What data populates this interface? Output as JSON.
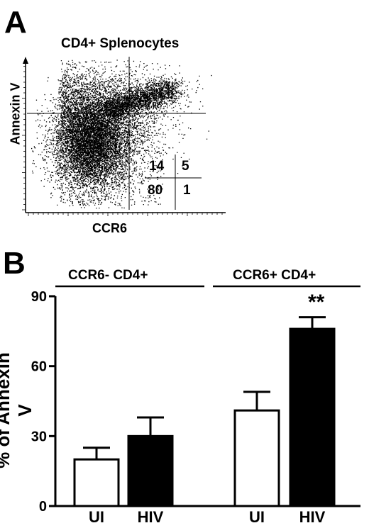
{
  "panelA": {
    "letter": "A",
    "title": "CD4+ Splenocytes",
    "xlabel": "CCR6",
    "ylabel": "Annexin V",
    "quadrants": {
      "upper_left": "14",
      "upper_right": "5",
      "lower_left": "80",
      "lower_right": "1"
    }
  },
  "panelB": {
    "letter": "B",
    "groups": [
      "CCR6- CD4+",
      "CCR6+ CD4+"
    ],
    "significance": "**"
  },
  "chart_data": [
    {
      "type": "scatter",
      "title": "CD4+ Splenocytes",
      "xlabel": "CCR6",
      "ylabel": "Annexin V",
      "quadrant_percentages": {
        "upper_left": 14,
        "upper_right": 5,
        "lower_left": 80,
        "lower_right": 1
      }
    },
    {
      "type": "bar",
      "xlabel": "",
      "ylabel": "% of Annexin V",
      "ylim": [
        0,
        90
      ],
      "yticks": [
        0,
        30,
        60,
        90
      ],
      "categories": [
        "UI",
        "HIV",
        "UI",
        "HIV"
      ],
      "groups": [
        "CCR6- CD4+",
        "CCR6+ CD4+"
      ],
      "values": [
        20,
        30,
        41,
        76
      ],
      "errors": [
        5,
        8,
        8,
        5
      ],
      "bar_colors": [
        "#ffffff",
        "#000000",
        "#ffffff",
        "#000000"
      ],
      "significance": [
        null,
        null,
        null,
        "**"
      ]
    }
  ]
}
